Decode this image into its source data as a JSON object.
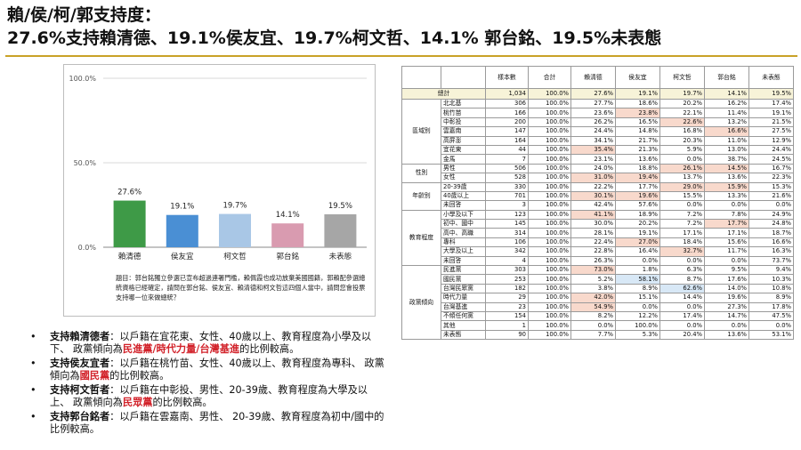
{
  "title_line1": "賴/侯/柯/郭支持度：",
  "title_line2": "27.6%支持賴清德、19.1%侯友宜、19.7%柯文哲、14.1% 郭台銘、19.5%未表態",
  "chart_data": {
    "type": "bar",
    "categories": [
      "賴清德",
      "侯友宜",
      "柯文哲",
      "郭台銘",
      "未表態"
    ],
    "values": [
      27.6,
      19.1,
      19.7,
      14.1,
      19.5
    ],
    "value_labels": [
      "27.6%",
      "19.1%",
      "19.7%",
      "14.1%",
      "19.5%"
    ],
    "colors": [
      "#3e9a47",
      "#4a8fd4",
      "#a9c7e6",
      "#d99bb0",
      "#a6a6a6"
    ],
    "ylim": [
      0,
      100
    ],
    "yticks": [
      0,
      50,
      100
    ],
    "ytick_labels": [
      "0.0%",
      "50.0%",
      "100.0%"
    ],
    "grid": true
  },
  "chart_note": "題目：郭台銘獨立參選已宣布超過連署門檻，賴佩霞也成功放棄美國國籍，郭賴配參選總統資格已經確定，請問在郭台銘、侯友宜、賴清德和柯文哲這四個人當中，請問您會投票支持哪一位來做總統？",
  "bullets": [
    {
      "head": "支持賴清德者",
      "pre": "：以戶籍在宜花東、女性、40歲以上、教育程度為小學及以下、 政黨傾向為",
      "red": "民進黨/時代力量/台灣基進",
      "post": "的比例較高。"
    },
    {
      "head": "支持侯友宜者",
      "pre": "：以戶籍在桃竹苗、女性、40歲以上、教育程度為專科、 政黨傾向為",
      "red": "國民黨",
      "post": "的比例較高。"
    },
    {
      "head": "支持柯文哲者",
      "pre": "：以戶籍在中彰投、男性、20-39歲、教育程度為大學及以上、 政黨傾向為",
      "red": "民眾黨",
      "post": "的比例較高。"
    },
    {
      "head": "支持郭台銘者",
      "pre": "：以戶籍在雲嘉南、男性、 20-39歲、教育程度為初中/國中的比例較高。",
      "red": "",
      "post": ""
    }
  ],
  "table": {
    "headers": [
      "",
      "",
      "樣本數",
      "合計",
      "賴清德",
      "侯友宜",
      "柯文哲",
      "郭台銘",
      "未表態"
    ],
    "total": {
      "label": "總計",
      "values": [
        "1,034",
        "100.0%",
        "27.6%",
        "19.1%",
        "19.7%",
        "14.1%",
        "19.5%"
      ]
    },
    "groups": [
      {
        "name": "區域別",
        "rows": [
          {
            "label": "北北基",
            "values": [
              "306",
              "100.0%",
              "27.7%",
              "18.6%",
              "20.2%",
              "16.2%",
              "17.4%"
            ]
          },
          {
            "label": "桃竹苗",
            "values": [
              "166",
              "100.0%",
              "23.6%",
              "23.8%",
              "22.1%",
              "11.4%",
              "19.1%"
            ],
            "hl": [
              3
            ]
          },
          {
            "label": "中彰投",
            "values": [
              "200",
              "100.0%",
              "26.2%",
              "16.5%",
              "22.6%",
              "13.2%",
              "21.5%"
            ],
            "hl": [
              4
            ]
          },
          {
            "label": "雲嘉南",
            "values": [
              "147",
              "100.0%",
              "24.4%",
              "14.8%",
              "16.8%",
              "16.6%",
              "27.5%"
            ],
            "hl": [
              5
            ]
          },
          {
            "label": "高屏澎",
            "values": [
              "164",
              "100.0%",
              "34.1%",
              "21.7%",
              "20.3%",
              "11.0%",
              "12.9%"
            ]
          },
          {
            "label": "宜花東",
            "values": [
              "44",
              "100.0%",
              "35.4%",
              "21.3%",
              "5.9%",
              "13.0%",
              "24.4%"
            ],
            "hl": [
              2
            ]
          },
          {
            "label": "金馬",
            "values": [
              "7",
              "100.0%",
              "23.1%",
              "13.6%",
              "0.0%",
              "38.7%",
              "24.5%"
            ]
          }
        ]
      },
      {
        "name": "性別",
        "rows": [
          {
            "label": "男性",
            "values": [
              "506",
              "100.0%",
              "24.0%",
              "18.8%",
              "26.1%",
              "14.5%",
              "16.7%"
            ],
            "hl": [
              4,
              5
            ]
          },
          {
            "label": "女性",
            "values": [
              "528",
              "100.0%",
              "31.0%",
              "19.4%",
              "13.7%",
              "13.6%",
              "22.3%"
            ],
            "hl": [
              2,
              3
            ]
          }
        ]
      },
      {
        "name": "年齡別",
        "rows": [
          {
            "label": "20-39歲",
            "values": [
              "330",
              "100.0%",
              "22.2%",
              "17.7%",
              "29.0%",
              "15.9%",
              "15.3%"
            ],
            "hl": [
              4,
              5
            ]
          },
          {
            "label": "40歲以上",
            "values": [
              "701",
              "100.0%",
              "30.1%",
              "19.6%",
              "15.5%",
              "13.3%",
              "21.6%"
            ],
            "hl": [
              2,
              3
            ]
          },
          {
            "label": "未回答",
            "values": [
              "3",
              "100.0%",
              "42.4%",
              "57.6%",
              "0.0%",
              "0.0%",
              "0.0%"
            ]
          }
        ]
      },
      {
        "name": "教育程度",
        "rows": [
          {
            "label": "小學及以下",
            "values": [
              "123",
              "100.0%",
              "41.1%",
              "18.9%",
              "7.2%",
              "7.8%",
              "24.9%"
            ],
            "hl": [
              2
            ]
          },
          {
            "label": "初中、國中",
            "values": [
              "145",
              "100.0%",
              "30.0%",
              "20.2%",
              "7.2%",
              "17.7%",
              "24.8%"
            ],
            "hl": [
              5
            ]
          },
          {
            "label": "高中、高職",
            "values": [
              "314",
              "100.0%",
              "28.1%",
              "19.1%",
              "17.1%",
              "17.1%",
              "18.7%"
            ]
          },
          {
            "label": "專科",
            "values": [
              "106",
              "100.0%",
              "22.4%",
              "27.0%",
              "18.4%",
              "15.6%",
              "16.6%"
            ],
            "hl": [
              3
            ]
          },
          {
            "label": "大學及以上",
            "values": [
              "342",
              "100.0%",
              "22.8%",
              "16.4%",
              "32.7%",
              "11.7%",
              "16.3%"
            ],
            "hl": [
              4
            ]
          },
          {
            "label": "未回答",
            "values": [
              "4",
              "100.0%",
              "26.3%",
              "0.0%",
              "0.0%",
              "0.0%",
              "73.7%"
            ]
          }
        ]
      },
      {
        "name": "政黨傾向",
        "rows": [
          {
            "label": "民進黨",
            "values": [
              "303",
              "100.0%",
              "73.0%",
              "1.8%",
              "6.3%",
              "9.5%",
              "9.4%"
            ],
            "hl": [
              2
            ]
          },
          {
            "label": "國民黨",
            "values": [
              "253",
              "100.0%",
              "5.2%",
              "58.1%",
              "8.7%",
              "17.6%",
              "10.3%"
            ],
            "hlb": [
              3
            ]
          },
          {
            "label": "台灣民眾黨",
            "values": [
              "182",
              "100.0%",
              "3.8%",
              "8.9%",
              "62.6%",
              "14.0%",
              "10.8%"
            ],
            "hlb": [
              4
            ]
          },
          {
            "label": "時代力量",
            "values": [
              "29",
              "100.0%",
              "42.0%",
              "15.1%",
              "14.4%",
              "19.6%",
              "8.9%"
            ],
            "hl": [
              2
            ]
          },
          {
            "label": "台灣基進",
            "values": [
              "23",
              "100.0%",
              "54.9%",
              "0.0%",
              "0.0%",
              "27.3%",
              "17.8%"
            ],
            "hl": [
              2
            ]
          },
          {
            "label": "不傾任何黨",
            "values": [
              "154",
              "100.0%",
              "8.2%",
              "12.2%",
              "17.4%",
              "14.7%",
              "47.5%"
            ]
          },
          {
            "label": "其他",
            "values": [
              "1",
              "100.0%",
              "0.0%",
              "100.0%",
              "0.0%",
              "0.0%",
              "0.0%"
            ]
          },
          {
            "label": "未表態",
            "values": [
              "90",
              "100.0%",
              "7.7%",
              "5.3%",
              "20.4%",
              "13.6%",
              "53.1%"
            ]
          }
        ]
      }
    ]
  }
}
